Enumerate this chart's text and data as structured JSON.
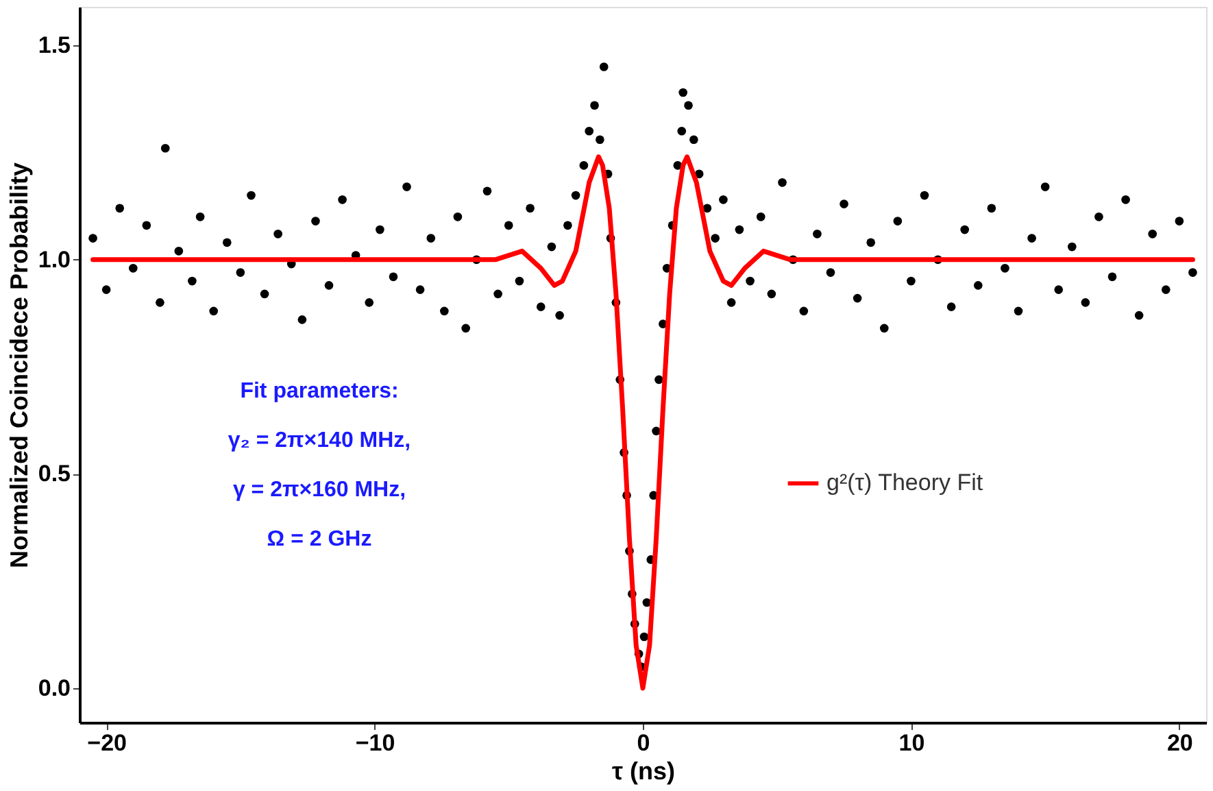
{
  "chart_data": {
    "type": "scatter",
    "xlabel": "τ (ns)",
    "ylabel": "Normalized Coincidece Probability",
    "xlim": [
      -21,
      21
    ],
    "xticks": [
      -20,
      -10,
      0,
      10,
      20
    ],
    "ylim": [
      -0.08,
      1.59
    ],
    "yticks": [
      {
        "value": 0,
        "label": "0.0"
      },
      {
        "value": 0.5,
        "label": "0.5"
      },
      {
        "value": 1,
        "label": "1.0"
      },
      {
        "value": 1.5,
        "label": "1.5"
      }
    ],
    "grid": false,
    "legend": "right",
    "annotations": [
      "Fit parameters:",
      "γ₂ = 2π×140 MHz,",
      "γ = 2π×160 MHz,",
      "Ω = 2 GHz"
    ],
    "series": [
      {
        "marker": "circle",
        "color": "#000000",
        "x": [
          -20.5,
          -20,
          -19.5,
          -19,
          -18.5,
          -18,
          -17.8,
          -17.3,
          -16.8,
          -16.5,
          -16,
          -15.5,
          -15,
          -14.6,
          -14.1,
          -13.6,
          -13.1,
          -12.7,
          -12.2,
          -11.7,
          -11.2,
          -10.7,
          -10.2,
          -9.8,
          -9.3,
          -8.8,
          -8.3,
          -7.9,
          -7.4,
          -6.9,
          -6.6,
          -6.2,
          -5.8,
          -5.4,
          -5,
          -4.6,
          -4.2,
          -3.8,
          -3.4,
          -3.1,
          -2.8,
          -2.5,
          -2.2,
          -2,
          -1.8,
          -1.6,
          -1.45,
          -1.3,
          -1.2,
          -1,
          -0.85,
          -0.7,
          -0.6,
          -0.5,
          -0.4,
          -0.3,
          -0.15,
          -0.05,
          0.05,
          0.15,
          0.3,
          0.4,
          0.5,
          0.6,
          0.75,
          0.9,
          1.1,
          1.3,
          1.45,
          1.5,
          1.7,
          1.9,
          2.1,
          2.4,
          2.7,
          3,
          3.3,
          3.6,
          4,
          4.4,
          4.8,
          5.2,
          5.6,
          6,
          6.5,
          7,
          7.5,
          8,
          8.5,
          9,
          9.5,
          10,
          10.5,
          11,
          11.5,
          12,
          12.5,
          13,
          13.5,
          14,
          14.5,
          15,
          15.5,
          16,
          16.5,
          17,
          17.5,
          18,
          18.5,
          19,
          19.5,
          20,
          20.5
        ],
        "values": [
          1.05,
          0.93,
          1.12,
          0.98,
          1.08,
          0.9,
          1.26,
          1.02,
          0.95,
          1.1,
          0.88,
          1.04,
          0.97,
          1.15,
          0.92,
          1.06,
          0.99,
          0.86,
          1.09,
          0.94,
          1.14,
          1.01,
          0.9,
          1.07,
          0.96,
          1.17,
          0.93,
          1.05,
          0.88,
          1.1,
          0.84,
          1,
          1.16,
          0.92,
          1.08,
          0.95,
          1.12,
          0.89,
          1.03,
          0.87,
          1.08,
          1.15,
          1.22,
          1.3,
          1.36,
          1.28,
          1.45,
          1.2,
          1.05,
          0.9,
          0.72,
          0.55,
          0.45,
          0.32,
          0.22,
          0.15,
          0.08,
          0.05,
          0.12,
          0.2,
          0.3,
          0.45,
          0.6,
          0.72,
          0.85,
          0.98,
          1.08,
          1.22,
          1.3,
          1.39,
          1.36,
          1.28,
          1.2,
          1.12,
          1.05,
          1.14,
          0.9,
          1.07,
          0.95,
          1.1,
          0.92,
          1.18,
          1,
          0.88,
          1.06,
          0.97,
          1.13,
          0.91,
          1.04,
          0.84,
          1.09,
          0.95,
          1.15,
          1,
          0.89,
          1.07,
          0.94,
          1.12,
          0.98,
          0.88,
          1.05,
          1.17,
          0.93,
          1.03,
          0.9,
          1.1,
          0.96,
          1.14,
          0.87,
          1.06,
          0.93,
          1.09,
          0.97
        ]
      },
      {
        "type": "line",
        "name": "g²(τ) Theory Fit",
        "color": "#ff0000",
        "line_style": "solid",
        "x": [
          -20.5,
          -5.5,
          -4.5,
          -3.8,
          -3.3,
          -3,
          -2.5,
          -2,
          -1.65,
          -1.5,
          -1.25,
          -1,
          -0.75,
          -0.5,
          -0.25,
          0,
          0.25,
          0.5,
          0.75,
          1,
          1.25,
          1.5,
          1.65,
          2,
          2.5,
          3,
          3.3,
          3.8,
          4.5,
          5.5,
          20.5
        ],
        "values": [
          1,
          1,
          1.02,
          0.98,
          0.94,
          0.95,
          1.02,
          1.18,
          1.24,
          1.22,
          1.12,
          0.92,
          0.65,
          0.35,
          0.1,
          0,
          0.1,
          0.35,
          0.65,
          0.92,
          1.12,
          1.22,
          1.24,
          1.18,
          1.02,
          0.95,
          0.94,
          0.98,
          1.02,
          1,
          1
        ]
      }
    ]
  }
}
